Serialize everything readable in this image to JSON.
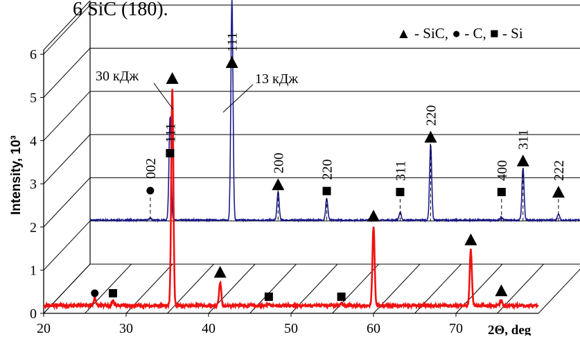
{
  "caption_fragment": "6 SiC (180).",
  "chart_data": {
    "type": "line",
    "layout": "3d-offset",
    "xlabel": "2Θ, deg",
    "ylabel": "Intensity, 10³",
    "xlim": [
      20,
      80
    ],
    "ylim": [
      0,
      6
    ],
    "x_ticks": [
      "20",
      "30",
      "40",
      "50",
      "60",
      "70"
    ],
    "y_ticks": [
      "0",
      "1",
      "2",
      "3",
      "4",
      "5",
      "6"
    ],
    "grid": true,
    "legend": "▲ - SiC, ● - C, ■ - Si",
    "legend_position": "top-right",
    "series": [
      {
        "name": "13 кДж",
        "color": "#1a1a8c",
        "offset": 1.0,
        "peaks": [
          {
            "x": 27.3,
            "y": 0.05
          },
          {
            "x": 29.7,
            "y": 2.4
          },
          {
            "x": 37.2,
            "y": 5.1
          },
          {
            "x": 42.8,
            "y": 0.65
          },
          {
            "x": 48.7,
            "y": 0.5
          },
          {
            "x": 57.6,
            "y": 0.18
          },
          {
            "x": 61.3,
            "y": 1.75
          },
          {
            "x": 69.9,
            "y": 0.06
          },
          {
            "x": 72.5,
            "y": 1.2
          },
          {
            "x": 76.8,
            "y": 0.15
          }
        ]
      },
      {
        "name": "30 кДж",
        "color": "#ee1111",
        "offset": 0.0,
        "peaks": [
          {
            "x": 26.2,
            "y": 0.18
          },
          {
            "x": 28.4,
            "y": 0.12
          },
          {
            "x": 35.6,
            "y": 5.0
          },
          {
            "x": 41.4,
            "y": 0.55
          },
          {
            "x": 47.3,
            "y": 0.05
          },
          {
            "x": 56.1,
            "y": 0.04
          },
          {
            "x": 60.0,
            "y": 1.85
          },
          {
            "x": 71.8,
            "y": 1.3
          },
          {
            "x": 75.5,
            "y": 0.12
          }
        ]
      }
    ],
    "series_labels": [
      "13 кДж",
      "30 кДж"
    ],
    "peak_labels": [
      {
        "text": "002",
        "series": 0,
        "x": 27.3,
        "marker": "circle"
      },
      {
        "text": "111",
        "series": 0,
        "x": 29.7,
        "marker": "square"
      },
      {
        "text": "111",
        "series": 0,
        "x": 37.2,
        "marker": "triangle"
      },
      {
        "text": "200",
        "series": 0,
        "x": 42.8,
        "marker": "triangle"
      },
      {
        "text": "220",
        "series": 0,
        "x": 48.7,
        "marker": "square"
      },
      {
        "text": "311",
        "series": 0,
        "x": 57.6,
        "marker": "square"
      },
      {
        "text": "220",
        "series": 0,
        "x": 61.3,
        "marker": "triangle"
      },
      {
        "text": "400",
        "series": 0,
        "x": 69.9,
        "marker": "square"
      },
      {
        "text": "311",
        "series": 0,
        "x": 72.5,
        "marker": "triangle"
      },
      {
        "text": "222",
        "series": 0,
        "x": 76.8,
        "marker": "triangle"
      }
    ],
    "markers_30kJ": [
      {
        "x": 26.2,
        "marker": "circle"
      },
      {
        "x": 28.4,
        "marker": "square"
      },
      {
        "x": 35.6,
        "marker": "triangle"
      },
      {
        "x": 41.4,
        "marker": "triangle"
      },
      {
        "x": 47.3,
        "marker": "square"
      },
      {
        "x": 56.1,
        "marker": "square"
      },
      {
        "x": 60.0,
        "marker": "triangle"
      },
      {
        "x": 71.8,
        "marker": "triangle"
      },
      {
        "x": 75.5,
        "marker": "triangle"
      }
    ]
  }
}
